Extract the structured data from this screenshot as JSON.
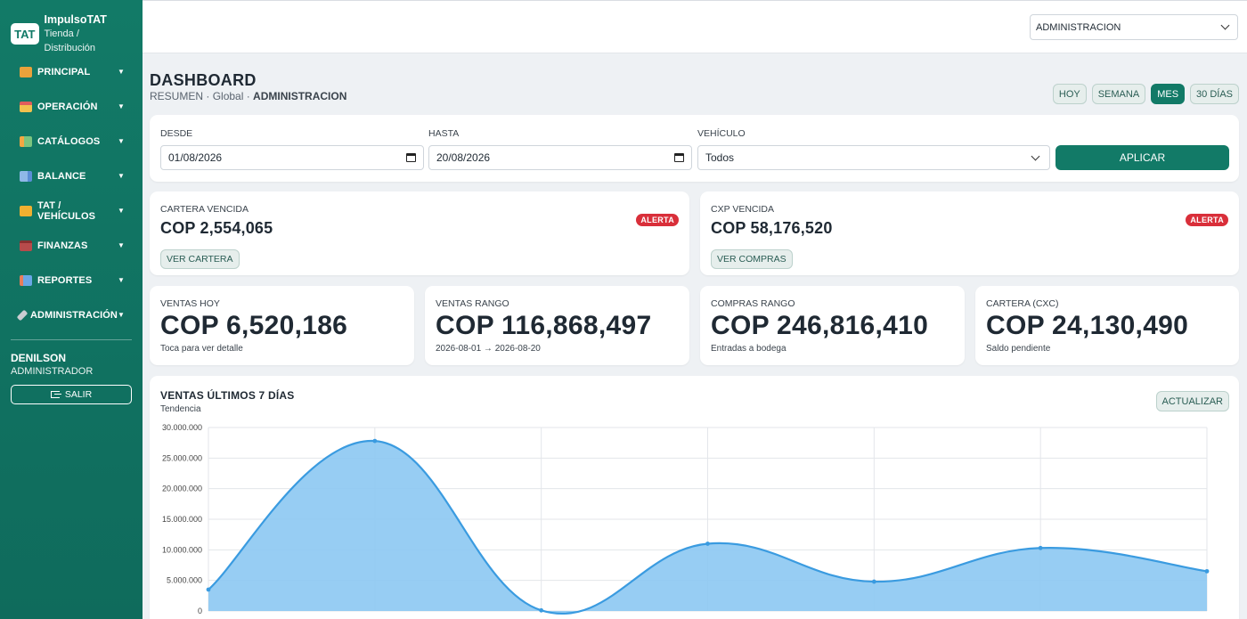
{
  "sidebar": {
    "brand_badge": "TAT",
    "brand_name": "ImpulsoTAT",
    "brand_sub": "Tienda / Distribución",
    "items": [
      {
        "label": "PRINCIPAL",
        "icon": "store-icon"
      },
      {
        "label": "OPERACIÓN",
        "icon": "cash-register-icon"
      },
      {
        "label": "CATÁLOGOS",
        "icon": "books-icon"
      },
      {
        "label": "BALANCE",
        "icon": "chart-icon"
      },
      {
        "label": "TAT / VEHÍCULOS",
        "icon": "truck-icon"
      },
      {
        "label": "FINANZAS",
        "icon": "briefcase-icon"
      },
      {
        "label": "REPORTES",
        "icon": "report-icon"
      },
      {
        "label": "ADMINISTRACIÓN",
        "icon": "tools-icon"
      }
    ],
    "user_name": "DENILSON",
    "user_role": "ADMINISTRADOR",
    "logout_label": "SALIR"
  },
  "topbar": {
    "store_select_value": "ADMINISTRACION"
  },
  "header": {
    "title": "DASHBOARD",
    "crumb_1": "RESUMEN",
    "crumb_2": "Global",
    "crumb_3": "ADMINISTRACION",
    "ranges": [
      "HOY",
      "SEMANA",
      "MES",
      "30 DÍAS"
    ],
    "active_range": "MES"
  },
  "filters": {
    "desde_label": "DESDE",
    "desde_value": "01/08/2026",
    "hasta_label": "HASTA",
    "hasta_value": "20/08/2026",
    "vehiculo_label": "VEHÍCULO",
    "vehiculo_value": "Todos",
    "apply_label": "APLICAR"
  },
  "alerts": [
    {
      "title": "CARTERA VENCIDA",
      "value": "COP 2,554,065",
      "badge": "ALERTA",
      "button": "VER CARTERA"
    },
    {
      "title": "CXP VENCIDA",
      "value": "COP 58,176,520",
      "badge": "ALERTA",
      "button": "VER COMPRAS"
    }
  ],
  "kpis": [
    {
      "title": "VENTAS HOY",
      "value": "COP 6,520,186",
      "sub": "Toca para ver detalle"
    },
    {
      "title": "VENTAS RANGO",
      "value": "COP 116,868,497",
      "sub": "2026-08-01 → 2026-08-20"
    },
    {
      "title": "COMPRAS RANGO",
      "value": "COP 246,816,410",
      "sub": "Entradas a bodega"
    },
    {
      "title": "CARTERA (CXC)",
      "value": "COP 24,130,490",
      "sub": "Saldo pendiente"
    }
  ],
  "chart": {
    "title": "VENTAS ÚLTIMOS 7 DÍAS",
    "subtitle": "Tendencia",
    "refresh_label": "ACTUALIZAR"
  },
  "colors": {
    "primary": "#127a67",
    "alert": "#d92f3a",
    "line": "#3a9be0",
    "area": "#8cc8f2"
  },
  "chart_data": {
    "type": "area",
    "title": "VENTAS ÚLTIMOS 7 DÍAS",
    "subtitle": "Tendencia",
    "y_ticks": [
      "30.000.000",
      "25.000.000",
      "20.000.000",
      "15.000.000",
      "10.000.000",
      "5.000.000",
      "0"
    ],
    "ylim": [
      0,
      30000000
    ],
    "values": [
      3500000,
      27800000,
      100000,
      11000000,
      4800000,
      10300000,
      6500000
    ],
    "grid": true,
    "legend": "none"
  }
}
